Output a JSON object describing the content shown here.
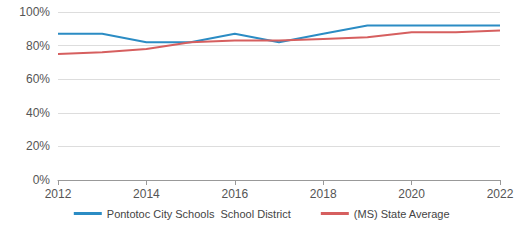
{
  "chart_data": {
    "type": "line",
    "x": [
      2012,
      2013,
      2014,
      2015,
      2016,
      2017,
      2018,
      2019,
      2020,
      2021,
      2022
    ],
    "series": [
      {
        "name": "Pontotoc City Schools  School District",
        "color": "#2b8cc4",
        "values": [
          87,
          87,
          82,
          82,
          87,
          82,
          87,
          92,
          92,
          92,
          92
        ]
      },
      {
        "name": "(MS) State Average",
        "color": "#d65f5f",
        "values": [
          75,
          76,
          78,
          82,
          83,
          83,
          84,
          85,
          88,
          88,
          89
        ]
      }
    ],
    "xlim": [
      2012,
      2022
    ],
    "xticks": [
      2012,
      2014,
      2016,
      2018,
      2020,
      2022
    ],
    "ylim": [
      0,
      100
    ],
    "yticks": [
      {
        "value": 0,
        "label": "0%"
      },
      {
        "value": 20,
        "label": "20%"
      },
      {
        "value": 40,
        "label": "40%"
      },
      {
        "value": 60,
        "label": "60%"
      },
      {
        "value": 80,
        "label": "80%"
      },
      {
        "value": 100,
        "label": "100%"
      }
    ],
    "grid": true,
    "legend": "bottom"
  }
}
